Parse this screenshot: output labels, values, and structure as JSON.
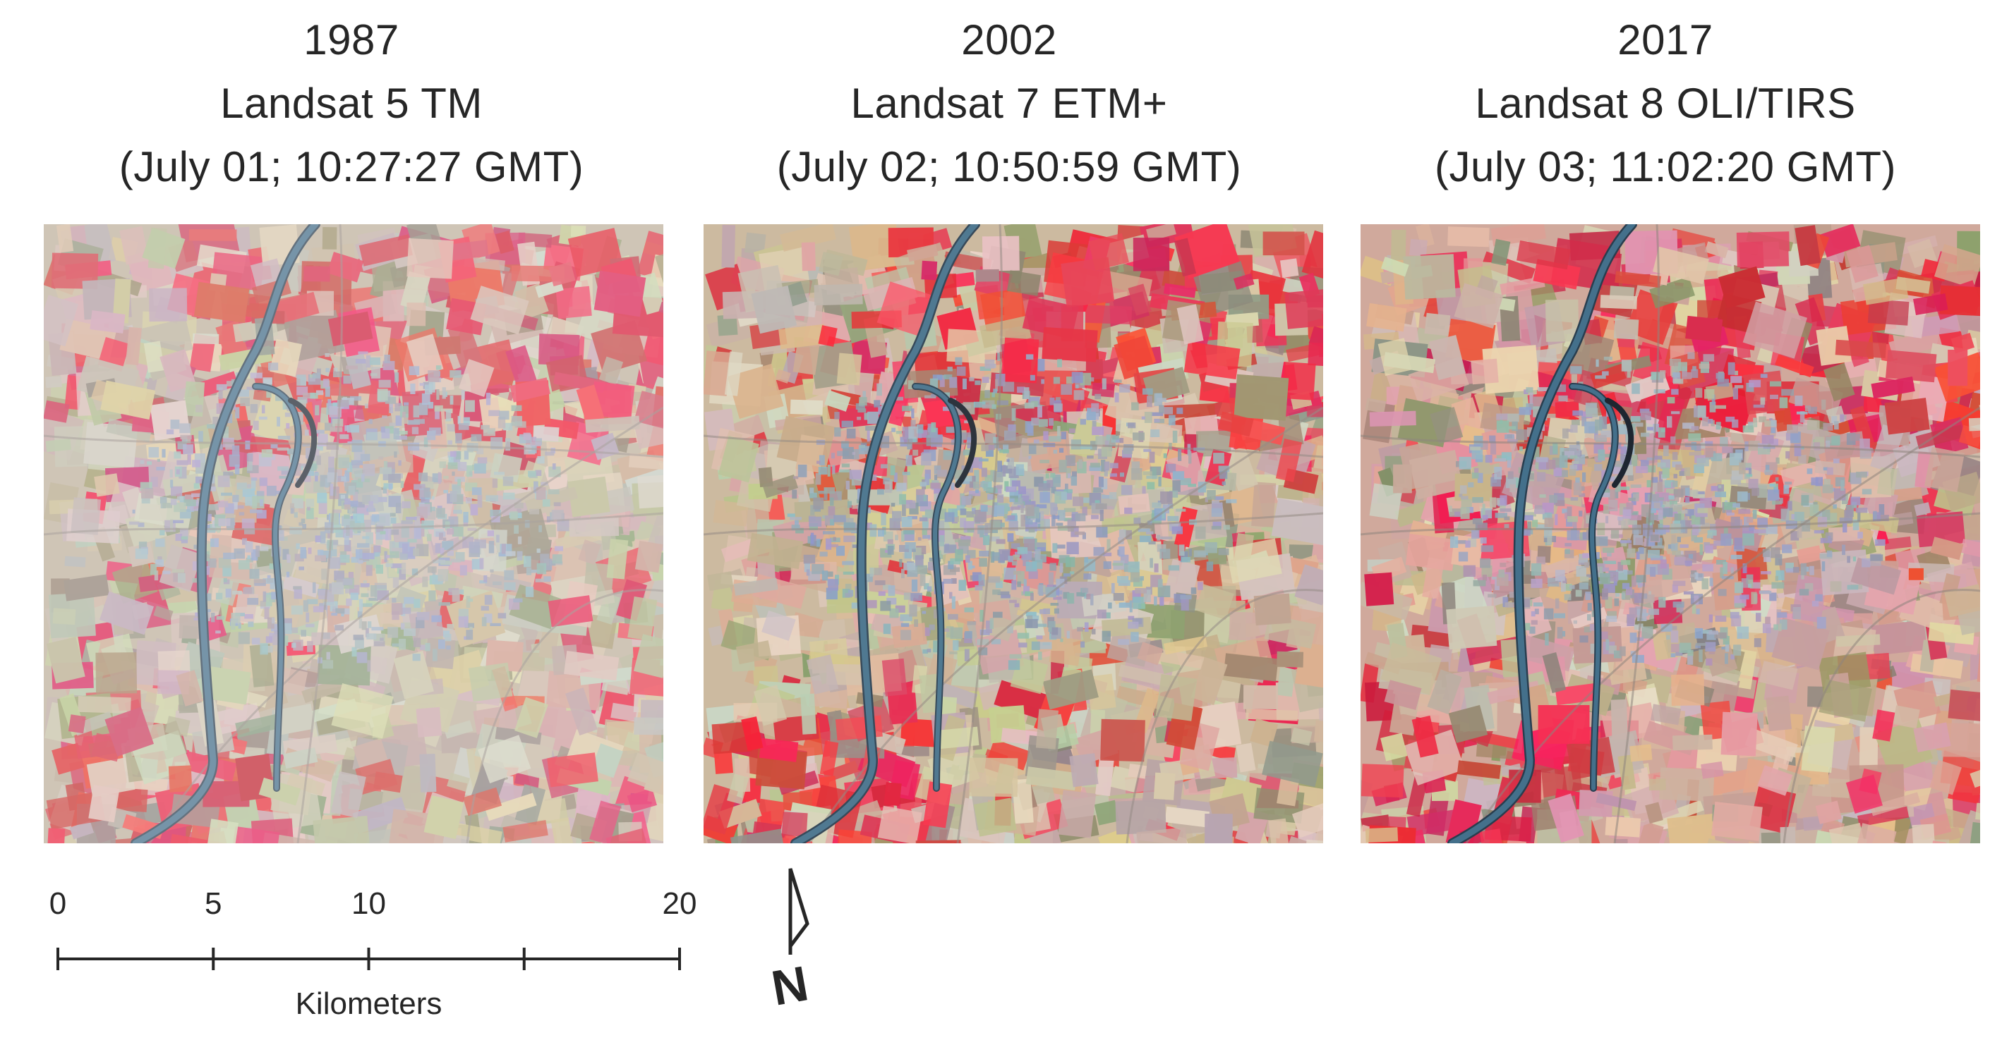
{
  "panels": [
    {
      "year": "1987",
      "sensor": "Landsat 5 TM",
      "acquisition": "(July 01; 10:27:27 GMT)",
      "palette": {
        "base": "#c3b39c",
        "veg": "#e0283c",
        "urban": "#9aa6b4",
        "haze": 0.34
      }
    },
    {
      "year": "2002",
      "sensor": "Landsat 7 ETM+",
      "acquisition": "(July 02; 10:50:59 GMT)",
      "palette": {
        "base": "#c9b497",
        "veg": "#e3263a",
        "urban": "#93a1b2",
        "haze": 0.12
      }
    },
    {
      "year": "2017",
      "sensor": "Landsat 8 OLI/TIRS",
      "acquisition": "(July 03; 11:02:20 GMT)",
      "palette": {
        "base": "#cfa698",
        "veg": "#dd2d43",
        "urban": "#a1a7b4",
        "haze": 0.05
      }
    }
  ],
  "scale_bar": {
    "unit": "Kilometers",
    "ticks": [
      {
        "label": "0",
        "km": 0
      },
      {
        "label": "5",
        "km": 5
      },
      {
        "label": "10",
        "km": 10
      },
      {
        "label": "",
        "km": 15
      },
      {
        "label": "20",
        "km": 20
      }
    ],
    "max_km": 20
  },
  "north_arrow": {
    "label": "N"
  },
  "colors": {
    "river": "#3c6a86",
    "river_dark": "#1f3547",
    "text": "#262626"
  }
}
